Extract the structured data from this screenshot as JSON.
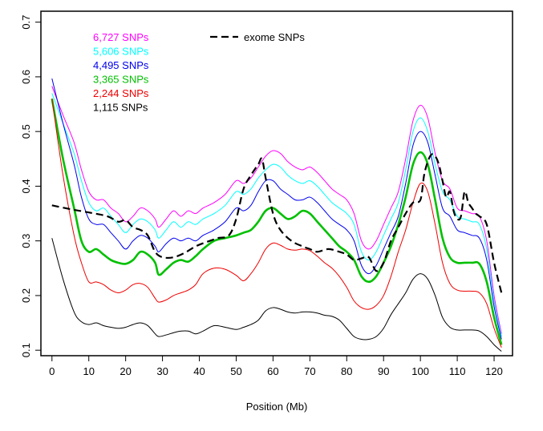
{
  "chart_data": {
    "type": "line",
    "title": "",
    "xlabel": "Position (Mb)",
    "ylabel": "",
    "xlim": [
      -3,
      125
    ],
    "ylim": [
      0.09,
      0.72
    ],
    "xticks": [
      0,
      10,
      20,
      30,
      40,
      50,
      60,
      70,
      80,
      90,
      100,
      110,
      120
    ],
    "yticks": [
      0.1,
      0.2,
      0.3,
      0.4,
      0.5,
      0.6,
      0.7
    ],
    "grid": false,
    "legend": {
      "position": "top-left"
    },
    "series": [
      {
        "name": "6,727 SNPs",
        "color": "#ff00ff",
        "width": 1,
        "dash": "",
        "x": [
          0,
          3,
          6,
          8,
          10,
          12,
          14,
          16,
          18,
          20,
          22,
          24,
          26,
          28,
          29,
          31,
          33,
          35,
          37,
          39,
          41,
          44,
          47,
          50,
          52,
          54,
          56,
          58,
          60,
          62,
          64,
          66,
          68,
          70,
          72,
          74,
          76,
          78,
          80,
          82,
          84,
          86,
          88,
          90,
          92,
          94,
          96,
          98,
          100,
          102,
          104,
          106,
          108,
          110,
          112,
          114,
          116,
          118,
          120,
          122
        ],
        "y": [
          0.583,
          0.53,
          0.48,
          0.43,
          0.39,
          0.375,
          0.375,
          0.36,
          0.35,
          0.335,
          0.345,
          0.36,
          0.355,
          0.34,
          0.325,
          0.34,
          0.355,
          0.345,
          0.355,
          0.35,
          0.36,
          0.37,
          0.385,
          0.41,
          0.405,
          0.415,
          0.435,
          0.455,
          0.465,
          0.46,
          0.445,
          0.435,
          0.43,
          0.435,
          0.425,
          0.41,
          0.395,
          0.385,
          0.375,
          0.35,
          0.3,
          0.285,
          0.3,
          0.33,
          0.36,
          0.39,
          0.45,
          0.52,
          0.548,
          0.525,
          0.46,
          0.41,
          0.395,
          0.36,
          0.355,
          0.35,
          0.345,
          0.3,
          0.2,
          0.13
        ]
      },
      {
        "name": "5,606 SNPs",
        "color": "#00ffff",
        "width": 1,
        "dash": "",
        "x": [
          0,
          3,
          6,
          8,
          10,
          12,
          14,
          16,
          18,
          20,
          22,
          24,
          26,
          28,
          29,
          31,
          33,
          35,
          37,
          39,
          41,
          44,
          47,
          50,
          52,
          54,
          56,
          58,
          60,
          62,
          64,
          66,
          68,
          70,
          72,
          74,
          76,
          78,
          80,
          82,
          84,
          86,
          88,
          90,
          92,
          94,
          96,
          98,
          100,
          102,
          104,
          106,
          108,
          110,
          112,
          114,
          116,
          118,
          120,
          122
        ],
        "y": [
          0.57,
          0.515,
          0.46,
          0.41,
          0.37,
          0.355,
          0.36,
          0.345,
          0.33,
          0.315,
          0.33,
          0.34,
          0.335,
          0.32,
          0.305,
          0.32,
          0.335,
          0.325,
          0.335,
          0.33,
          0.34,
          0.35,
          0.365,
          0.39,
          0.385,
          0.395,
          0.415,
          0.43,
          0.44,
          0.435,
          0.42,
          0.41,
          0.405,
          0.41,
          0.4,
          0.385,
          0.37,
          0.36,
          0.35,
          0.33,
          0.28,
          0.265,
          0.28,
          0.31,
          0.34,
          0.37,
          0.43,
          0.5,
          0.525,
          0.5,
          0.44,
          0.39,
          0.375,
          0.345,
          0.34,
          0.335,
          0.33,
          0.285,
          0.19,
          0.125
        ]
      },
      {
        "name": "4,495 SNPs",
        "color": "#0000ee",
        "width": 1,
        "dash": "",
        "x": [
          0,
          3,
          6,
          8,
          10,
          12,
          14,
          16,
          18,
          20,
          22,
          24,
          26,
          28,
          29,
          31,
          33,
          35,
          37,
          39,
          41,
          44,
          47,
          50,
          52,
          54,
          56,
          58,
          60,
          62,
          64,
          66,
          68,
          70,
          72,
          74,
          76,
          78,
          80,
          82,
          84,
          86,
          88,
          90,
          92,
          94,
          96,
          98,
          100,
          102,
          104,
          106,
          108,
          110,
          112,
          114,
          116,
          118,
          120,
          122
        ],
        "y": [
          0.597,
          0.515,
          0.44,
          0.38,
          0.34,
          0.33,
          0.33,
          0.315,
          0.3,
          0.285,
          0.3,
          0.31,
          0.305,
          0.29,
          0.28,
          0.295,
          0.305,
          0.3,
          0.305,
          0.3,
          0.31,
          0.32,
          0.335,
          0.36,
          0.355,
          0.365,
          0.39,
          0.41,
          0.41,
          0.395,
          0.385,
          0.375,
          0.375,
          0.38,
          0.37,
          0.355,
          0.34,
          0.33,
          0.32,
          0.3,
          0.255,
          0.24,
          0.255,
          0.285,
          0.315,
          0.345,
          0.405,
          0.475,
          0.5,
          0.48,
          0.42,
          0.36,
          0.345,
          0.32,
          0.315,
          0.31,
          0.305,
          0.265,
          0.18,
          0.12
        ]
      },
      {
        "name": "3,365 SNPs",
        "color": "#00c000",
        "width": 2.6,
        "dash": "",
        "x": [
          0,
          3,
          6,
          8,
          10,
          12,
          14,
          16,
          18,
          20,
          22,
          24,
          26,
          28,
          29,
          31,
          33,
          35,
          37,
          39,
          41,
          44,
          47,
          50,
          52,
          54,
          56,
          58,
          60,
          62,
          64,
          66,
          68,
          70,
          72,
          74,
          76,
          78,
          80,
          82,
          84,
          86,
          88,
          90,
          92,
          94,
          96,
          98,
          100,
          102,
          104,
          106,
          108,
          110,
          112,
          114,
          116,
          118,
          120,
          122
        ],
        "y": [
          0.56,
          0.45,
          0.36,
          0.3,
          0.28,
          0.285,
          0.275,
          0.265,
          0.26,
          0.258,
          0.265,
          0.28,
          0.275,
          0.26,
          0.238,
          0.248,
          0.26,
          0.265,
          0.262,
          0.272,
          0.285,
          0.3,
          0.305,
          0.31,
          0.315,
          0.32,
          0.335,
          0.355,
          0.36,
          0.35,
          0.34,
          0.345,
          0.355,
          0.35,
          0.335,
          0.32,
          0.305,
          0.29,
          0.28,
          0.265,
          0.235,
          0.225,
          0.235,
          0.26,
          0.29,
          0.33,
          0.38,
          0.44,
          0.462,
          0.44,
          0.375,
          0.305,
          0.27,
          0.26,
          0.26,
          0.26,
          0.258,
          0.225,
          0.16,
          0.11
        ]
      },
      {
        "name": "2,244 SNPs",
        "color": "#ee0000",
        "width": 1,
        "dash": "",
        "x": [
          0,
          3,
          6,
          8,
          10,
          12,
          14,
          16,
          18,
          20,
          22,
          24,
          26,
          28,
          29,
          31,
          33,
          35,
          37,
          39,
          41,
          44,
          47,
          50,
          52,
          54,
          56,
          58,
          60,
          62,
          64,
          66,
          68,
          70,
          72,
          74,
          76,
          78,
          80,
          82,
          84,
          86,
          88,
          90,
          92,
          94,
          96,
          98,
          100,
          102,
          104,
          106,
          108,
          110,
          112,
          114,
          116,
          118,
          120,
          122
        ],
        "y": [
          0.56,
          0.42,
          0.31,
          0.26,
          0.225,
          0.225,
          0.22,
          0.21,
          0.205,
          0.21,
          0.22,
          0.222,
          0.215,
          0.195,
          0.188,
          0.192,
          0.2,
          0.205,
          0.21,
          0.22,
          0.24,
          0.25,
          0.248,
          0.237,
          0.227,
          0.24,
          0.26,
          0.285,
          0.296,
          0.292,
          0.285,
          0.283,
          0.285,
          0.282,
          0.272,
          0.26,
          0.25,
          0.235,
          0.215,
          0.19,
          0.178,
          0.175,
          0.182,
          0.2,
          0.235,
          0.28,
          0.32,
          0.37,
          0.405,
          0.39,
          0.33,
          0.26,
          0.222,
          0.21,
          0.208,
          0.208,
          0.205,
          0.185,
          0.14,
          0.105
        ]
      },
      {
        "name": "1,115 SNPs",
        "color": "#000000",
        "width": 1,
        "dash": "",
        "x": [
          0,
          3,
          6,
          8,
          10,
          12,
          14,
          16,
          18,
          20,
          22,
          24,
          26,
          28,
          29,
          31,
          33,
          35,
          37,
          39,
          41,
          44,
          47,
          50,
          52,
          54,
          56,
          58,
          60,
          62,
          64,
          66,
          68,
          70,
          72,
          74,
          76,
          78,
          80,
          82,
          84,
          86,
          88,
          90,
          92,
          94,
          96,
          98,
          100,
          102,
          104,
          106,
          108,
          110,
          112,
          114,
          116,
          118,
          120,
          122
        ],
        "y": [
          0.305,
          0.23,
          0.17,
          0.152,
          0.147,
          0.15,
          0.145,
          0.142,
          0.14,
          0.142,
          0.147,
          0.15,
          0.145,
          0.13,
          0.125,
          0.128,
          0.132,
          0.135,
          0.135,
          0.13,
          0.135,
          0.145,
          0.142,
          0.138,
          0.142,
          0.147,
          0.155,
          0.172,
          0.178,
          0.175,
          0.17,
          0.168,
          0.17,
          0.17,
          0.168,
          0.164,
          0.162,
          0.155,
          0.14,
          0.125,
          0.12,
          0.12,
          0.125,
          0.14,
          0.165,
          0.185,
          0.205,
          0.23,
          0.24,
          0.23,
          0.2,
          0.16,
          0.142,
          0.137,
          0.137,
          0.137,
          0.135,
          0.125,
          0.11,
          0.098
        ]
      },
      {
        "name": "exome SNPs",
        "color": "#000000",
        "width": 2.2,
        "dash": "9,5",
        "x": [
          0,
          5,
          10,
          15,
          18,
          20,
          22,
          24,
          26,
          28,
          30,
          33,
          36,
          39,
          42,
          45,
          48,
          50,
          52,
          54,
          56,
          57,
          58,
          60,
          62,
          65,
          68,
          70,
          72,
          75,
          78,
          80,
          82,
          84,
          86,
          88,
          90,
          92,
          94,
          96,
          98,
          100,
          101,
          102,
          103,
          104,
          105,
          106,
          107,
          108,
          109,
          110,
          111,
          112,
          113,
          114,
          115,
          116,
          118,
          120,
          122
        ],
        "y": [
          0.365,
          0.358,
          0.352,
          0.345,
          0.335,
          0.338,
          0.325,
          0.32,
          0.31,
          0.28,
          0.27,
          0.27,
          0.278,
          0.29,
          0.298,
          0.305,
          0.31,
          0.34,
          0.395,
          0.42,
          0.44,
          0.45,
          0.415,
          0.35,
          0.32,
          0.3,
          0.29,
          0.285,
          0.28,
          0.285,
          0.28,
          0.275,
          0.265,
          0.268,
          0.27,
          0.245,
          0.26,
          0.3,
          0.325,
          0.35,
          0.37,
          0.375,
          0.42,
          0.445,
          0.458,
          0.455,
          0.44,
          0.41,
          0.38,
          0.39,
          0.355,
          0.34,
          0.345,
          0.39,
          0.37,
          0.36,
          0.35,
          0.345,
          0.33,
          0.26,
          0.205
        ]
      }
    ],
    "legend_entries": [
      {
        "label": "6,727 SNPs",
        "color": "#ff00ff"
      },
      {
        "label": "5,606 SNPs",
        "color": "#00ffff"
      },
      {
        "label": "4,495 SNPs",
        "color": "#0000ee"
      },
      {
        "label": "3,365 SNPs",
        "color": "#00c000"
      },
      {
        "label": "2,244 SNPs",
        "color": "#ee0000"
      },
      {
        "label": "1,115 SNPs",
        "color": "#000000"
      }
    ],
    "legend_dashed": {
      "label": "exome SNPs",
      "color": "#000000"
    }
  }
}
